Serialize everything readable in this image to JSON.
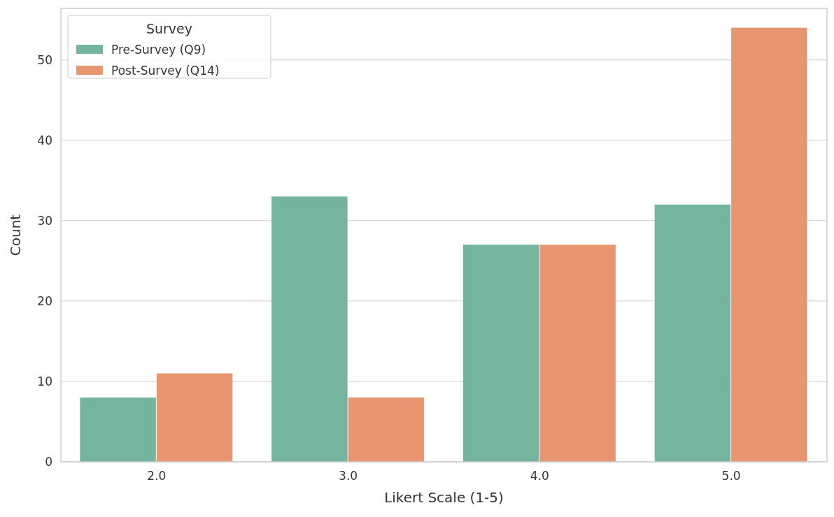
{
  "chart_data": {
    "type": "bar",
    "xlabel": "Likert Scale (1-5)",
    "ylabel": "Count",
    "legend_title": "Survey",
    "categories": [
      "2.0",
      "3.0",
      "4.0",
      "5.0"
    ],
    "series": [
      {
        "name": "Pre-Survey (Q9)",
        "color": "#75b5a0",
        "values": [
          8,
          33,
          27,
          32
        ]
      },
      {
        "name": "Post-Survey (Q14)",
        "color": "#e89670",
        "values": [
          11,
          8,
          27,
          54
        ]
      }
    ],
    "ylim": [
      0,
      56.4
    ],
    "yticks": [
      0,
      10,
      20,
      30,
      40,
      50
    ],
    "grid": "y",
    "legend": "top left"
  }
}
